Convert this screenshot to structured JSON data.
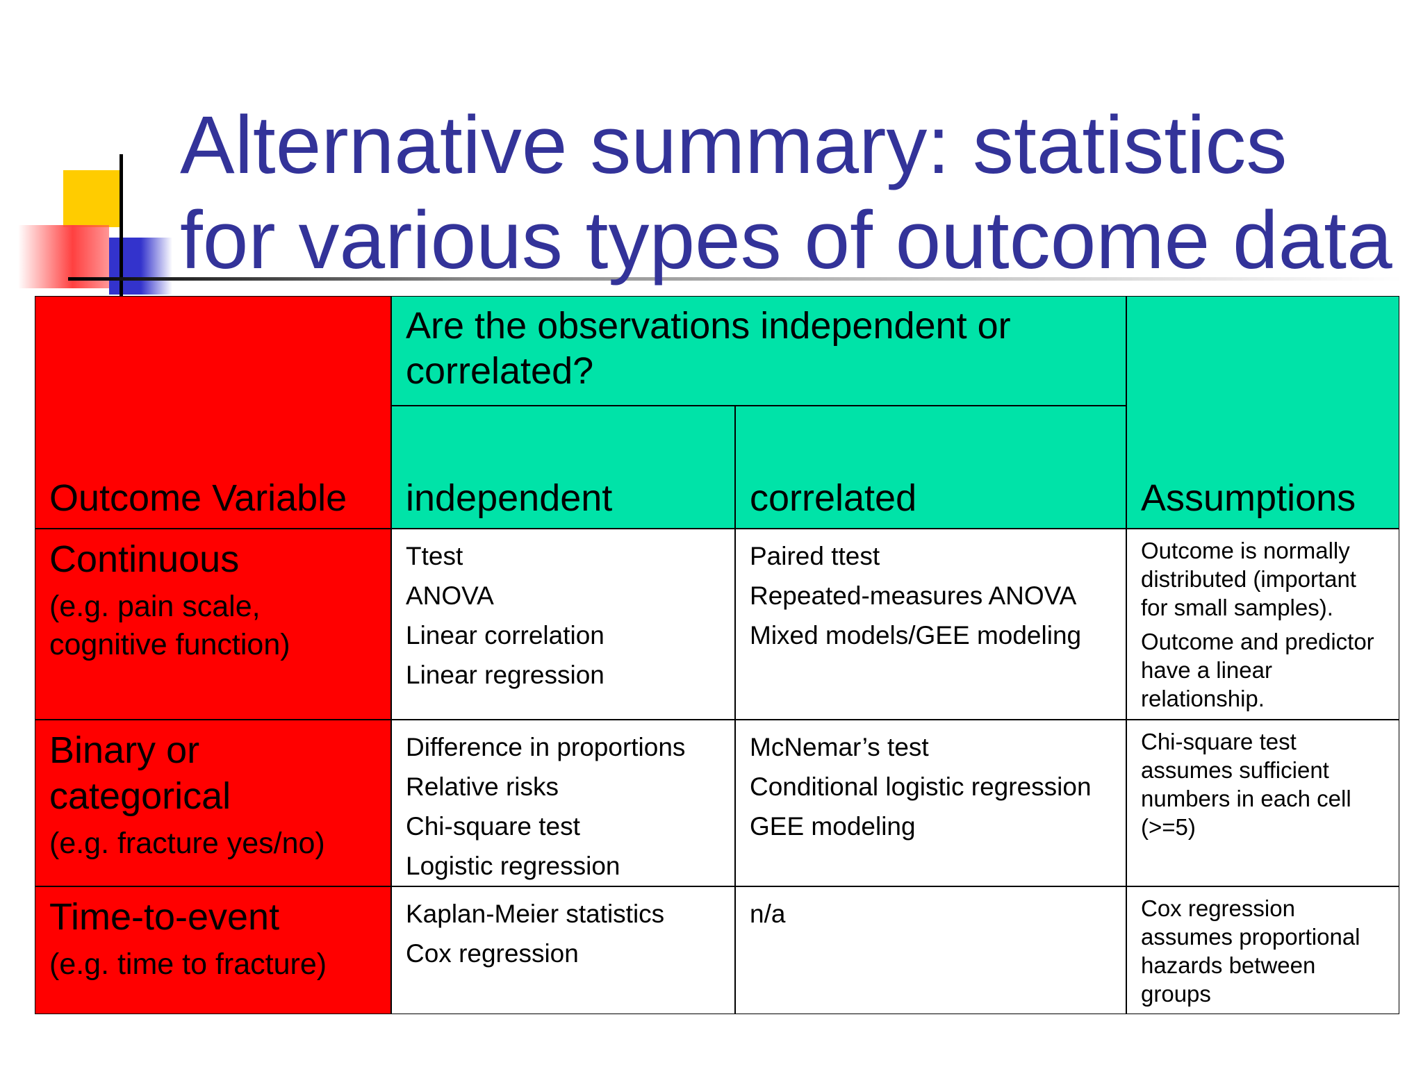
{
  "title": [
    "Alternative summary: statistics",
    "for various types of outcome data"
  ],
  "table": {
    "header": {
      "outcome_variable": "Outcome Variable",
      "question": "Are the observations independent or correlated?",
      "independent": "independent",
      "correlated": "correlated",
      "assumptions": "Assumptions"
    },
    "rows": [
      {
        "outcome": "Continuous",
        "example": "(e.g. pain scale, cognitive function)",
        "independent": [
          "Ttest",
          "ANOVA",
          "Linear correlation",
          "Linear regression"
        ],
        "correlated": [
          "Paired ttest",
          "Repeated-measures ANOVA",
          "Mixed models/GEE modeling"
        ],
        "assumptions": [
          "Outcome is normally distributed (important for small samples).",
          "Outcome and predictor have a linear relationship."
        ]
      },
      {
        "outcome": "Binary or categorical",
        "example": "(e.g. fracture yes/no)",
        "independent": [
          "Difference in proportions",
          "Relative risks",
          "Chi-square test",
          "Logistic regression"
        ],
        "correlated": [
          "McNemar’s test",
          "Conditional logistic regression",
          "GEE modeling"
        ],
        "assumptions": [
          "Chi-square test assumes sufficient numbers in each cell (>=5)"
        ]
      },
      {
        "outcome": "Time-to-event",
        "example": "(e.g. time to fracture)",
        "independent": [
          "Kaplan-Meier statistics",
          "Cox regression"
        ],
        "correlated": [
          "n/a"
        ],
        "assumptions": [
          "Cox regression assumes proportional hazards between groups"
        ]
      }
    ]
  }
}
